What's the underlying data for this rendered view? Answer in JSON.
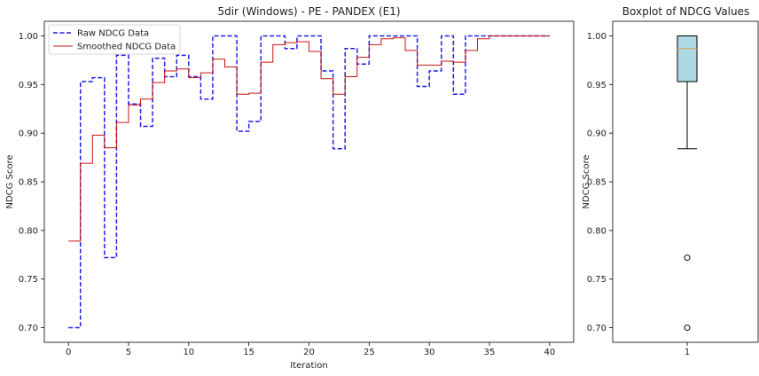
{
  "chart_data": [
    {
      "type": "line",
      "step": "post",
      "title": "5dir (Windows) - PE - PANDEX (E1)",
      "xlabel": "Iteration",
      "ylabel": "NDCG Score",
      "xlim": [
        -2,
        42
      ],
      "ylim": [
        0.685,
        1.015
      ],
      "xticks": [
        0,
        5,
        10,
        15,
        20,
        25,
        30,
        35,
        40
      ],
      "yticks": [
        0.7,
        0.75,
        0.8,
        0.85,
        0.9,
        0.95,
        1.0
      ],
      "legend": {
        "position": "top-left",
        "entries": [
          "Raw NDCG Data",
          "Smoothed NDCG Data"
        ]
      },
      "series": [
        {
          "name": "Raw NDCG Data",
          "color": "#1f1fe8",
          "dashed": true,
          "x": [
            0,
            1,
            2,
            3,
            4,
            5,
            6,
            7,
            8,
            9,
            10,
            11,
            12,
            13,
            14,
            15,
            16,
            17,
            18,
            19,
            20,
            21,
            22,
            23,
            24,
            25,
            26,
            27,
            28,
            29,
            30,
            31,
            32,
            33,
            34,
            35,
            36,
            37,
            38,
            39,
            40
          ],
          "y": [
            0.7,
            0.953,
            0.957,
            0.772,
            0.98,
            0.93,
            0.907,
            0.977,
            0.958,
            0.98,
            0.958,
            0.935,
            1.0,
            1.0,
            0.902,
            0.912,
            1.0,
            1.0,
            0.987,
            1.0,
            1.0,
            0.964,
            0.884,
            0.987,
            0.971,
            1.0,
            1.0,
            1.0,
            1.0,
            0.948,
            0.964,
            1.0,
            0.94,
            1.0,
            1.0,
            1.0,
            1.0,
            1.0,
            1.0,
            1.0,
            1.0
          ]
        },
        {
          "name": "Smoothed NDCG Data",
          "color": "#c81414",
          "dashed": false,
          "x": [
            0,
            1,
            2,
            3,
            4,
            5,
            6,
            7,
            8,
            9,
            10,
            11,
            12,
            13,
            14,
            15,
            16,
            17,
            18,
            19,
            20,
            21,
            22,
            23,
            24,
            25,
            26,
            27,
            28,
            29,
            30,
            31,
            32,
            33,
            34,
            35,
            36,
            37,
            38,
            39,
            40
          ],
          "y": [
            0.789,
            0.869,
            0.898,
            0.885,
            0.911,
            0.929,
            0.935,
            0.952,
            0.964,
            0.966,
            0.957,
            0.962,
            0.976,
            0.968,
            0.94,
            0.941,
            0.973,
            0.991,
            0.993,
            0.994,
            0.984,
            0.956,
            0.94,
            0.958,
            0.978,
            0.991,
            0.997,
            0.998,
            0.985,
            0.97,
            0.97,
            0.974,
            0.973,
            0.985,
            0.997,
            1.0,
            1.0,
            1.0,
            1.0,
            1.0,
            1.0
          ]
        }
      ]
    },
    {
      "type": "boxplot",
      "title": "Boxplot of NDCG Values",
      "xlabel": "",
      "ylabel": "NDCG Score",
      "ylim": [
        0.685,
        1.015
      ],
      "xticks": [
        "1"
      ],
      "yticks": [
        0.7,
        0.75,
        0.8,
        0.85,
        0.9,
        0.95,
        1.0
      ],
      "box": {
        "q1": 0.953,
        "median": 0.987,
        "q3": 1.0,
        "whisker_low": 0.884,
        "whisker_high": 1.0,
        "outliers": [
          0.772,
          0.7
        ],
        "fill_color": "#add8e6",
        "median_color": "#e8a040"
      }
    }
  ]
}
